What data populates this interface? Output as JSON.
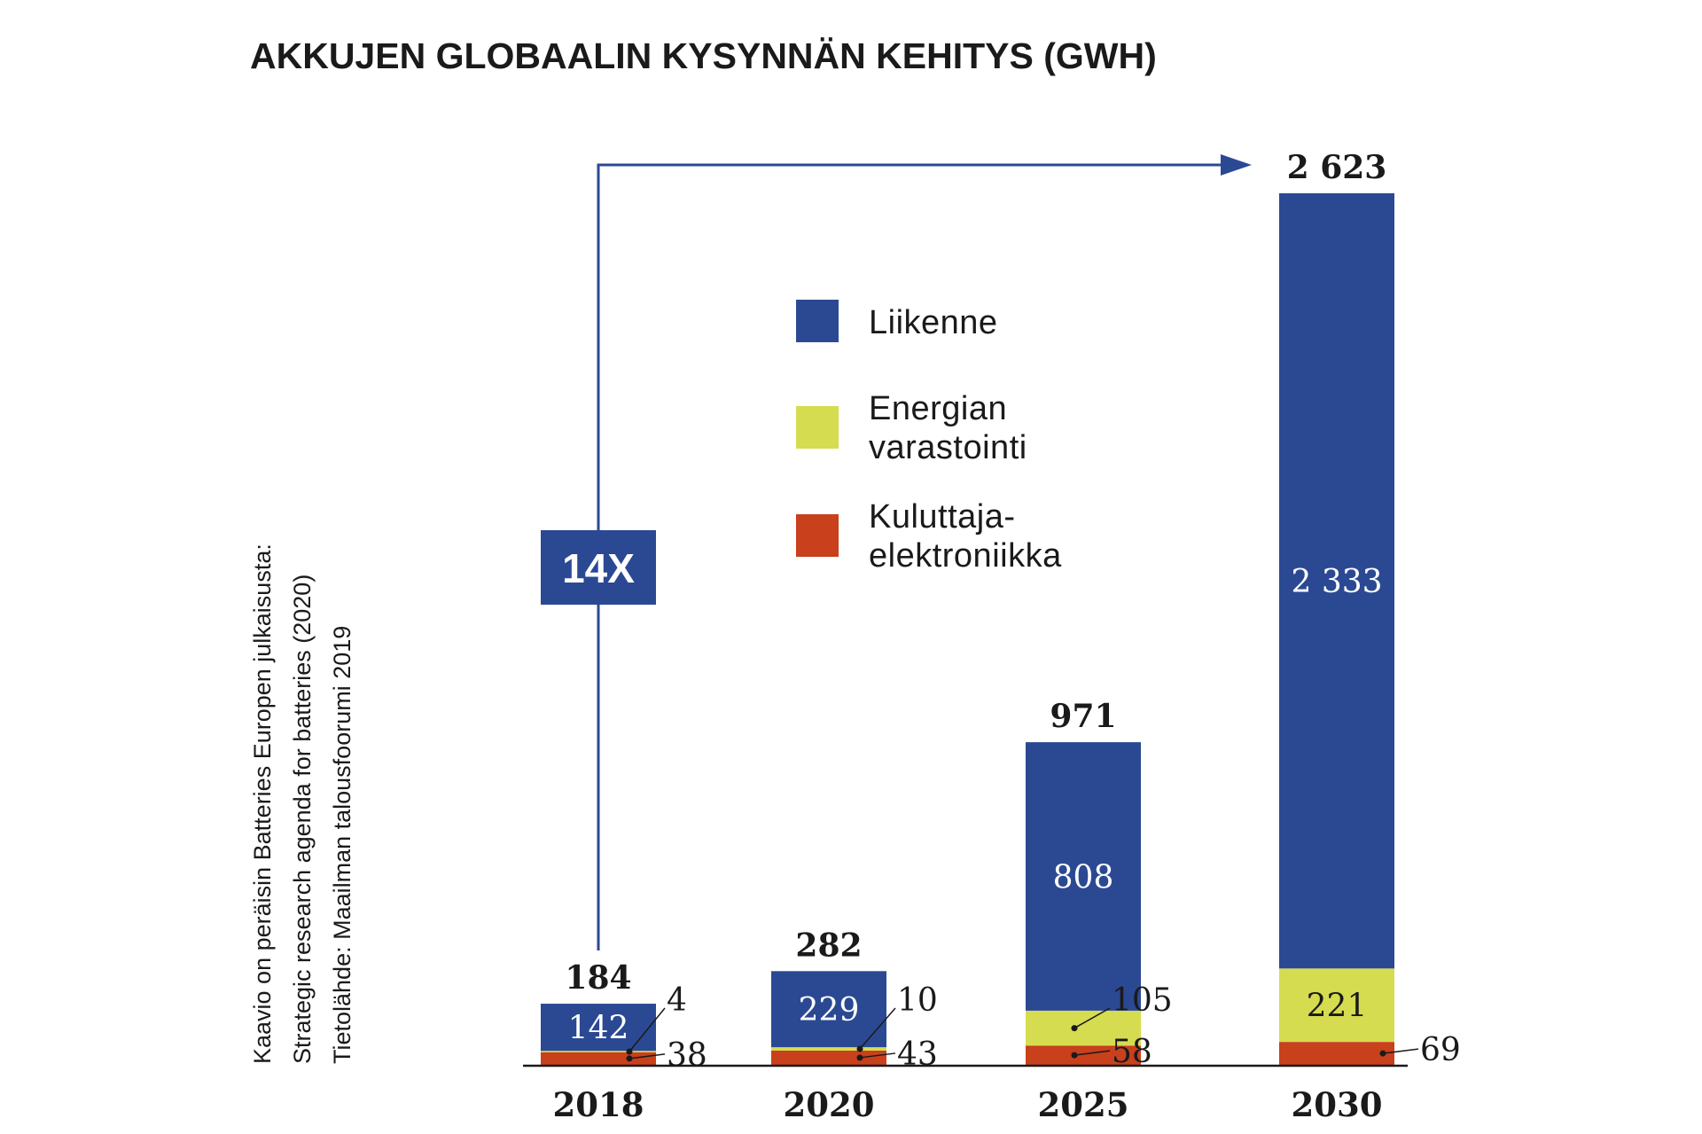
{
  "chart_data": {
    "type": "bar",
    "stacked": true,
    "title": "AKKUJEN GLOBAALIN KYSYNNÄN KEHITYS (GWH)",
    "categories": [
      "2018",
      "2020",
      "2025",
      "2030"
    ],
    "series": [
      {
        "name": "Kuluttaja-elektroniikka",
        "legend_lines": [
          "Kuluttaja-",
          "elektroniikka"
        ],
        "color": "#c8401c",
        "values": [
          38,
          43,
          58,
          69
        ]
      },
      {
        "name": "Energian varastointi",
        "legend_lines": [
          "Energian",
          "varastointi"
        ],
        "color": "#d6dc4f",
        "values": [
          4,
          10,
          105,
          221
        ]
      },
      {
        "name": "Liikenne",
        "legend_lines": [
          "Liikenne"
        ],
        "color": "#2b4993",
        "values": [
          142,
          229,
          808,
          2333
        ]
      }
    ],
    "totals": [
      "184",
      "282",
      "971",
      "2 623"
    ],
    "segment_labels": {
      "transport": [
        "142",
        "229",
        "808",
        "2 333"
      ],
      "storage": [
        "4",
        "10",
        "105",
        "221"
      ],
      "consumer": [
        "38",
        "43",
        "58",
        "69"
      ]
    },
    "growth_label": "14X",
    "source_lines": [
      "Kaavio on peräisin Batteries Europen julkaisusta:",
      "Strategic research agenda for batteries (2020)",
      "Tietolähde: Maailman talousfoorumi 2019"
    ],
    "ylim": [
      0,
      2623
    ],
    "grid": false,
    "legend_position": "center"
  }
}
